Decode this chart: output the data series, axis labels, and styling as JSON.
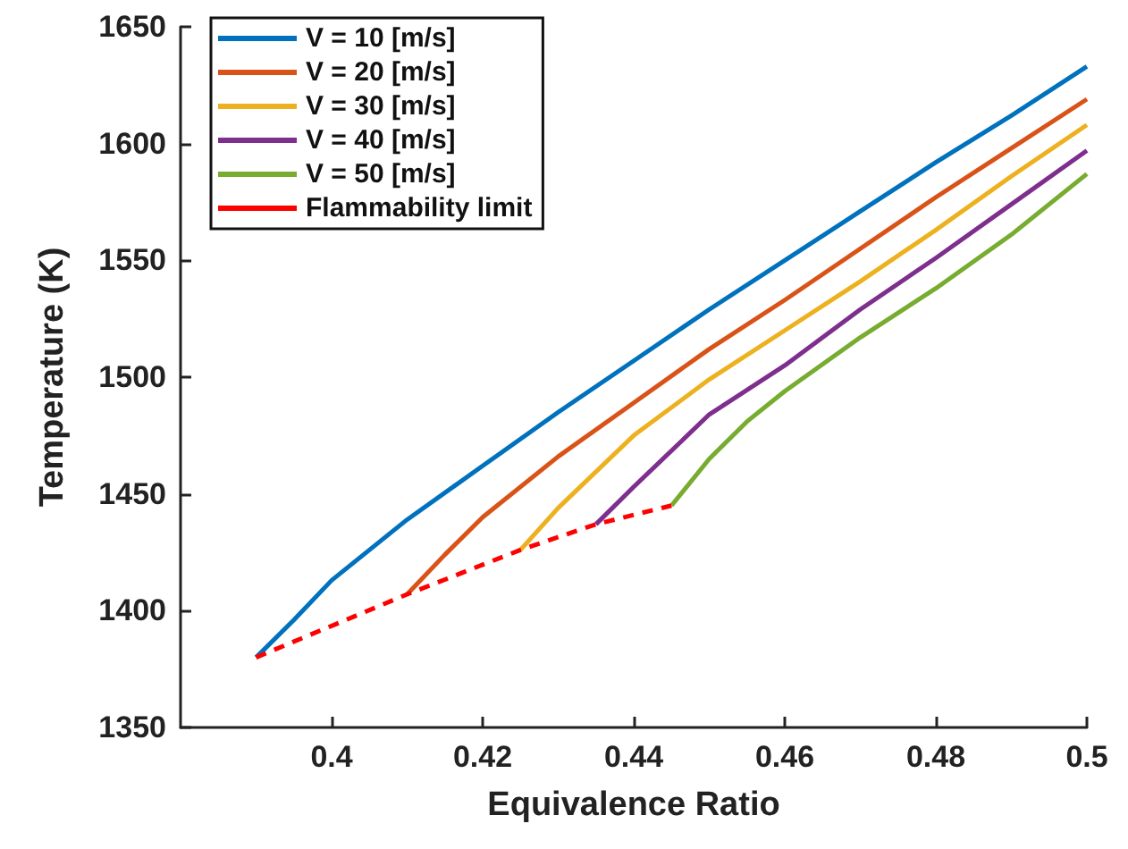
{
  "chart_data": {
    "type": "line",
    "xlabel": "Equivalence Ratio",
    "ylabel": "Temperature (K)",
    "xlim": [
      0.38,
      0.5
    ],
    "xticks": [
      0.4,
      0.42,
      0.44,
      0.46,
      0.48,
      0.5
    ],
    "ylim": [
      1350,
      1650
    ],
    "yticks": [
      1350,
      1400,
      1450,
      1500,
      1550,
      1600,
      1650
    ],
    "grid": false,
    "legend": "top left",
    "marker": "none",
    "line_style": "solid",
    "series": [
      {
        "name": "V = 10 [m/s]",
        "color": "#0072bd",
        "x": [
          0.39,
          0.395,
          0.4,
          0.41,
          0.42,
          0.43,
          0.44,
          0.45,
          0.46,
          0.47,
          0.48,
          0.49,
          0.5
        ],
        "values": [
          1380,
          1396,
          1413,
          1439,
          1462,
          1485,
          1507,
          1529,
          1550,
          1571,
          1592,
          1612,
          1633
        ]
      },
      {
        "name": "V = 20 [m/s]",
        "color": "#d95319",
        "x": [
          0.41,
          0.415,
          0.42,
          0.43,
          0.44,
          0.45,
          0.46,
          0.47,
          0.48,
          0.49,
          0.5
        ],
        "values": [
          1407,
          1424,
          1440,
          1466,
          1489,
          1512,
          1533,
          1555,
          1577,
          1598,
          1619
        ]
      },
      {
        "name": "V = 30 [m/s]",
        "color": "#edb120",
        "x": [
          0.425,
          0.43,
          0.44,
          0.45,
          0.46,
          0.47,
          0.48,
          0.49,
          0.5
        ],
        "values": [
          1426,
          1444,
          1475,
          1499,
          1520,
          1541,
          1563,
          1586,
          1608
        ]
      },
      {
        "name": "V = 40 [m/s]",
        "color": "#7e2f8e",
        "x": [
          0.435,
          0.44,
          0.45,
          0.46,
          0.47,
          0.48,
          0.49,
          0.5
        ],
        "values": [
          1437,
          1453,
          1484,
          1505,
          1529,
          1551,
          1574,
          1597
        ]
      },
      {
        "name": "V = 50 [m/s]",
        "color": "#77ac30",
        "x": [
          0.445,
          0.45,
          0.455,
          0.46,
          0.47,
          0.48,
          0.49,
          0.5
        ],
        "values": [
          1445,
          1465,
          1481,
          1494,
          1517,
          1538,
          1561,
          1587
        ]
      },
      {
        "name": "Flammability limit",
        "color": "#ff0000",
        "line_style": "dashed",
        "x": [
          0.39,
          0.41,
          0.425,
          0.435,
          0.445
        ],
        "values": [
          1380,
          1407,
          1426,
          1437,
          1445
        ]
      }
    ]
  }
}
